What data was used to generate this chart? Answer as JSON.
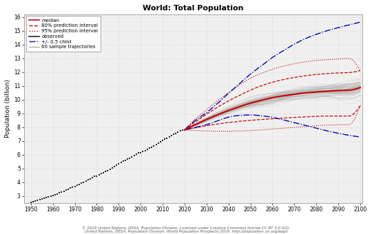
{
  "title": "World: Total Population",
  "ylabel": "Population (billion)",
  "xlim": [
    1947,
    2101
  ],
  "ylim": [
    2.5,
    16.2
  ],
  "yticks": [
    3,
    4,
    5,
    6,
    7,
    8,
    9,
    10,
    11,
    12,
    13,
    14,
    15,
    16
  ],
  "xticks": [
    1950,
    1960,
    1970,
    1980,
    1990,
    2000,
    2010,
    2020,
    2030,
    2040,
    2050,
    2060,
    2070,
    2080,
    2090,
    2100
  ],
  "footnote": "© 2019 United Nations, DESA, Population Division. Licensed under Creative Commons license CC BY 3.0 IGO.\nUnited Nations, DESA, Population Division. World Population Prospects 2019. http://population.un.org/wpp/",
  "observed_years": [
    1950,
    1951,
    1952,
    1953,
    1954,
    1955,
    1956,
    1957,
    1958,
    1959,
    1960,
    1961,
    1962,
    1963,
    1964,
    1965,
    1966,
    1967,
    1968,
    1969,
    1970,
    1971,
    1972,
    1973,
    1974,
    1975,
    1976,
    1977,
    1978,
    1979,
    1980,
    1981,
    1982,
    1983,
    1984,
    1985,
    1986,
    1987,
    1988,
    1989,
    1990,
    1991,
    1992,
    1993,
    1994,
    1995,
    1996,
    1997,
    1998,
    1999,
    2000,
    2001,
    2002,
    2003,
    2004,
    2005,
    2006,
    2007,
    2008,
    2009,
    2010,
    2011,
    2012,
    2013,
    2014,
    2015,
    2016,
    2017,
    2018,
    2019,
    2020
  ],
  "observed_values": [
    2.536,
    2.584,
    2.63,
    2.677,
    2.724,
    2.773,
    2.824,
    2.876,
    2.931,
    2.988,
    3.021,
    3.076,
    3.15,
    3.214,
    3.283,
    3.35,
    3.421,
    3.49,
    3.563,
    3.634,
    3.7,
    3.777,
    3.851,
    3.928,
    4.007,
    4.086,
    4.16,
    4.243,
    4.327,
    4.41,
    4.453,
    4.536,
    4.618,
    4.703,
    4.796,
    4.837,
    4.936,
    5.032,
    5.13,
    5.229,
    5.327,
    5.422,
    5.515,
    5.607,
    5.701,
    5.742,
    5.847,
    5.936,
    6.023,
    6.11,
    6.115,
    6.211,
    6.295,
    6.39,
    6.463,
    6.556,
    6.651,
    6.74,
    6.834,
    6.929,
    7.021,
    7.11,
    7.2,
    7.287,
    7.382,
    7.479,
    7.55,
    7.632,
    7.714,
    7.794,
    7.795
  ],
  "proj_years": [
    2020,
    2021,
    2022,
    2023,
    2024,
    2025,
    2026,
    2027,
    2028,
    2029,
    2030,
    2031,
    2032,
    2033,
    2034,
    2035,
    2036,
    2037,
    2038,
    2039,
    2040,
    2041,
    2042,
    2043,
    2044,
    2045,
    2046,
    2047,
    2048,
    2049,
    2050,
    2051,
    2052,
    2053,
    2054,
    2055,
    2056,
    2057,
    2058,
    2059,
    2060,
    2061,
    2062,
    2063,
    2064,
    2065,
    2066,
    2067,
    2068,
    2069,
    2070,
    2071,
    2072,
    2073,
    2074,
    2075,
    2076,
    2077,
    2078,
    2079,
    2080,
    2081,
    2082,
    2083,
    2084,
    2085,
    2086,
    2087,
    2088,
    2089,
    2090,
    2091,
    2092,
    2093,
    2094,
    2095,
    2096,
    2097,
    2098,
    2099,
    2100
  ],
  "background_color": "#f0f0f0",
  "grid_color": "#d0d0d0",
  "observed_color": "#222222",
  "median_color": "#cc0000",
  "pi80_color": "#cc0000",
  "pi95_color": "#cc0000",
  "blue_color": "#0000bb",
  "sample_color": "#aaaaaa",
  "n_samples": 60,
  "rand_seed": 12345
}
